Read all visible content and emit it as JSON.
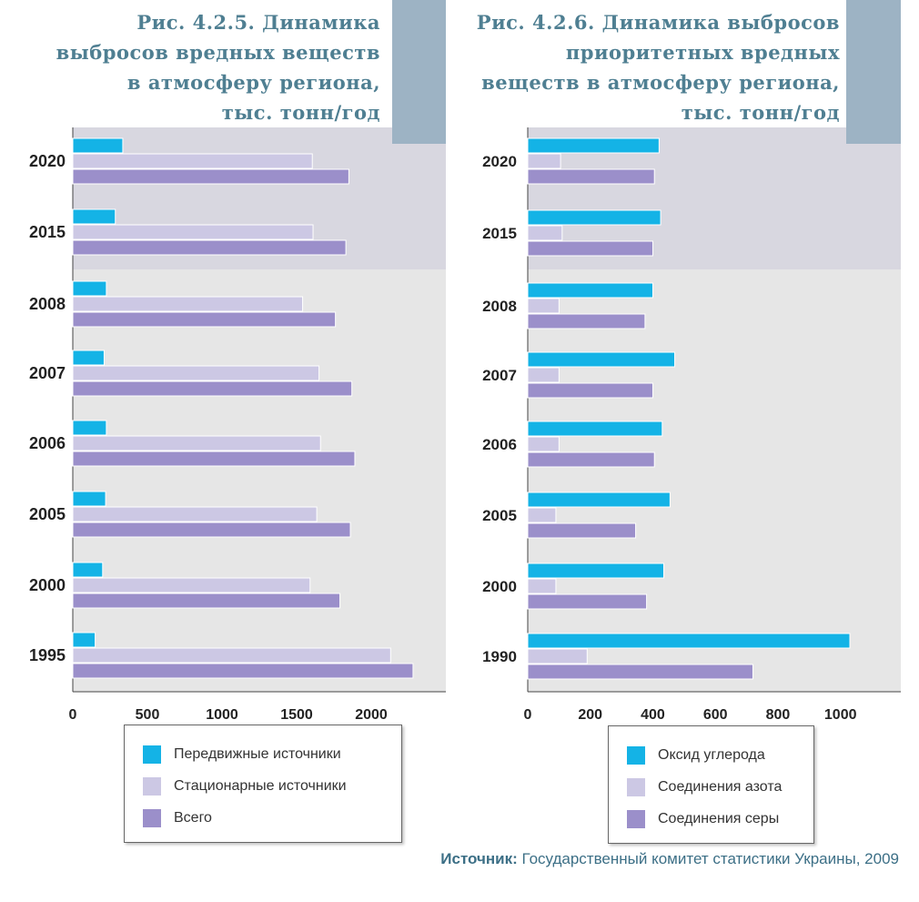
{
  "colors": {
    "mobile": "#14b3e6",
    "stationary": "#ccc8e4",
    "total": "#9b8fca",
    "forecast_bg": "#d8d7e0",
    "history_bg": "#e6e6e6",
    "title": "#4f7f92",
    "corner_block": "#9db3c4"
  },
  "source": {
    "label": "Источник:",
    "text": " Государственный комитет статистики Украины, 2009"
  },
  "chart_data": [
    {
      "type": "bar",
      "orientation": "horizontal",
      "title": "Рис. 4.2.5. Динамика\nвыбросов вредных веществ\nв атмосферу региона,\nтыс. тонн/год",
      "categories": [
        "2020",
        "2015",
        "2008",
        "2007",
        "2006",
        "2005",
        "2000",
        "1995"
      ],
      "series": [
        {
          "name": "Передвижные источники",
          "values": [
            335,
            285,
            225,
            210,
            225,
            220,
            200,
            150
          ]
        },
        {
          "name": "Стационарные источники",
          "values": [
            1605,
            1610,
            1540,
            1650,
            1660,
            1635,
            1590,
            2130
          ]
        },
        {
          "name": "Всего",
          "values": [
            1850,
            1830,
            1760,
            1870,
            1890,
            1860,
            1790,
            2280
          ]
        }
      ],
      "xlim": [
        0,
        2500
      ],
      "xticks": [
        "0",
        "500",
        "1000",
        "1500",
        "2000"
      ],
      "xtick_values": [
        0,
        500,
        1000,
        1500,
        2000
      ],
      "forecast_categories": [
        "2020",
        "2015"
      ],
      "legend": "bottom"
    },
    {
      "type": "bar",
      "orientation": "horizontal",
      "title": "Рис. 4.2.6. Динамика выбросов\nприоритетных вредных\nвеществ в атмосферу региона,\nтыс. тонн/год",
      "categories": [
        "2020",
        "2015",
        "2008",
        "2007",
        "2006",
        "2005",
        "2000",
        "1990"
      ],
      "series": [
        {
          "name": "Оксид углерода",
          "values": [
            420,
            425,
            400,
            470,
            430,
            455,
            435,
            1030
          ]
        },
        {
          "name": "Соединения азота",
          "values": [
            105,
            110,
            100,
            100,
            100,
            90,
            90,
            190
          ]
        },
        {
          "name": "Соединения серы",
          "values": [
            405,
            400,
            375,
            400,
            405,
            345,
            380,
            720
          ]
        }
      ],
      "xlim": [
        0,
        1190
      ],
      "xticks": [
        "0",
        "200",
        "400",
        "600",
        "800",
        "1000"
      ],
      "xtick_values": [
        0,
        200,
        400,
        600,
        800,
        1000
      ],
      "forecast_categories": [
        "2020",
        "2015"
      ],
      "legend": "bottom"
    }
  ]
}
